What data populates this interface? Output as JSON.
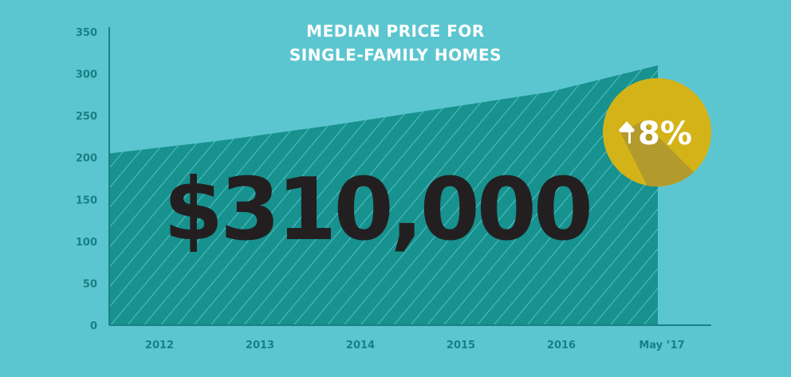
{
  "chart_data": {
    "type": "area",
    "title_lines": [
      "MEDIAN PRICE FOR",
      "SINGLE-FAMILY HOMES"
    ],
    "x_labels": [
      "2012",
      "2013",
      "2014",
      "2015",
      "2016",
      "May ’17"
    ],
    "y_ticks": [
      0,
      50,
      100,
      150,
      200,
      250,
      300,
      350
    ],
    "ylim": [
      0,
      350
    ],
    "series": [
      {
        "values": [
          205,
          220,
          238,
          258,
          278,
          310
        ]
      }
    ],
    "annotation": "$310,000",
    "badge": "8%",
    "badge_icon": "up-arrow-icon",
    "grid": false,
    "colors": {
      "background": "#5cc6d0",
      "area": "#17928e",
      "hatch": "#5cc6d0",
      "axis": "#1a7f85",
      "badge": "#d4b318",
      "badge_shadow": "#b39a2c",
      "price_text": "#231f20"
    }
  }
}
